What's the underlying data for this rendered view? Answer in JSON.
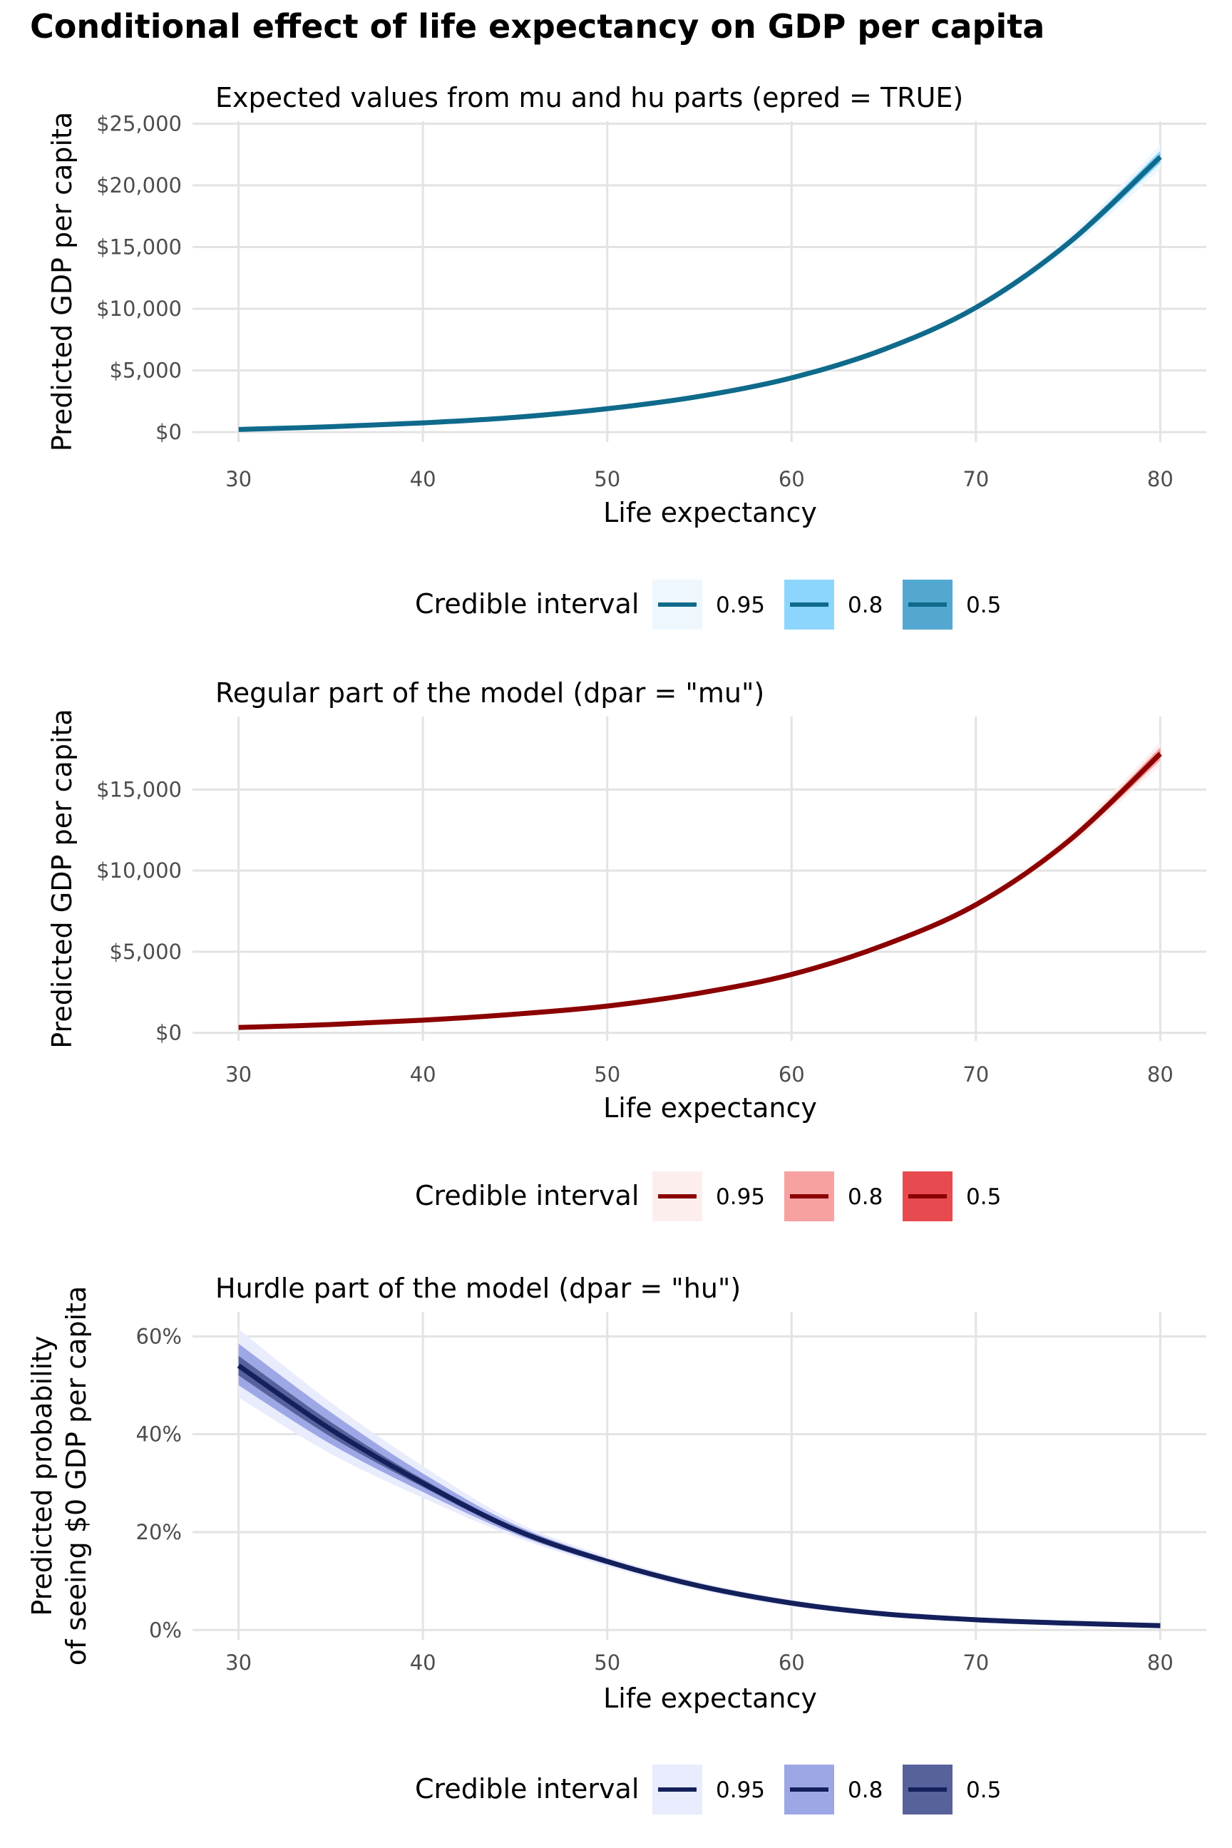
{
  "title": "Conditional effect of life expectancy on GDP per capita",
  "chart_data": [
    {
      "type": "line",
      "subtitle": "Expected values from mu and hu parts (epred = TRUE)",
      "xlabel": "Life expectancy",
      "ylabel": [
        "Predicted GDP per capita"
      ],
      "xlim": [
        27.5,
        82.5
      ],
      "ylim": [
        -800,
        25200
      ],
      "x_ticks": [
        30,
        40,
        50,
        60,
        70,
        80
      ],
      "x_tick_labels": [
        "30",
        "40",
        "50",
        "60",
        "70",
        "80"
      ],
      "y_ticks": [
        0,
        5000,
        10000,
        15000,
        20000,
        25000
      ],
      "y_tick_labels": [
        "$0",
        "$5,000",
        "$10,000",
        "$15,000",
        "$20,000",
        "$25,000"
      ],
      "line_color": "#0F6A8B",
      "band_colors": [
        "#EFF7FE",
        "#8CD6FE",
        "#52A8D0"
      ],
      "x": [
        30,
        35,
        40,
        45,
        50,
        55,
        60,
        65,
        70,
        75,
        80
      ],
      "y": [
        220,
        440,
        750,
        1200,
        1900,
        2900,
        4400,
        6700,
        10100,
        15300,
        22300
      ],
      "intervals": {
        "0.95": {
          "lower": [
            200,
            410,
            710,
            1140,
            1830,
            2810,
            4280,
            6520,
            9850,
            14750,
            21300
          ],
          "upper": [
            240,
            470,
            790,
            1260,
            1970,
            2990,
            4520,
            6880,
            10350,
            15850,
            23300
          ]
        },
        "0.8": {
          "lower": [
            210,
            425,
            730,
            1170,
            1865,
            2855,
            4340,
            6610,
            9975,
            15025,
            21800
          ],
          "upper": [
            230,
            455,
            770,
            1230,
            1935,
            2945,
            4460,
            6790,
            10225,
            15575,
            22800
          ]
        },
        "0.5": {
          "lower": [
            215,
            432,
            740,
            1185,
            1882,
            2877,
            4370,
            6655,
            10035,
            15160,
            22050
          ],
          "upper": [
            225,
            448,
            760,
            1215,
            1918,
            2923,
            4430,
            6745,
            10165,
            15440,
            22550
          ]
        }
      },
      "legend": {
        "title": "Credible interval",
        "entries": [
          "0.95",
          "0.8",
          "0.5"
        ]
      }
    },
    {
      "type": "line",
      "subtitle": "Regular part of the model (dpar = \"mu\")",
      "xlabel": "Life expectancy",
      "ylabel": [
        "Predicted GDP per capita"
      ],
      "xlim": [
        27.5,
        82.5
      ],
      "ylim": [
        -500,
        19500
      ],
      "x_ticks": [
        30,
        40,
        50,
        60,
        70,
        80
      ],
      "x_tick_labels": [
        "30",
        "40",
        "50",
        "60",
        "70",
        "80"
      ],
      "y_ticks": [
        0,
        5000,
        10000,
        15000
      ],
      "y_tick_labels": [
        "$0",
        "$5,000",
        "$10,000",
        "$15,000"
      ],
      "line_color": "#8B0000",
      "band_colors": [
        "#FDEEEE",
        "#F7A1A1",
        "#E84A4F"
      ],
      "x": [
        30,
        35,
        40,
        45,
        50,
        55,
        60,
        65,
        70,
        75,
        80
      ],
      "y": [
        330,
        510,
        780,
        1150,
        1650,
        2450,
        3600,
        5400,
        7900,
        11800,
        17200
      ],
      "intervals": {
        "0.95": {
          "lower": [
            300,
            480,
            745,
            1105,
            1590,
            2370,
            3490,
            5240,
            7680,
            11450,
            16500
          ],
          "upper": [
            360,
            540,
            815,
            1195,
            1710,
            2530,
            3710,
            5560,
            8120,
            12150,
            17900
          ]
        },
        "0.8": {
          "lower": [
            310,
            490,
            760,
            1125,
            1615,
            2405,
            3540,
            5310,
            7780,
            11610,
            16800
          ],
          "upper": [
            350,
            530,
            800,
            1175,
            1685,
            2495,
            3660,
            5490,
            8020,
            11990,
            17600
          ]
        },
        "0.5": {
          "lower": [
            318,
            498,
            768,
            1135,
            1630,
            2425,
            3570,
            5355,
            7840,
            11700,
            17000
          ],
          "upper": [
            342,
            522,
            792,
            1165,
            1670,
            2475,
            3630,
            5445,
            7960,
            11900,
            17400
          ]
        }
      },
      "legend": {
        "title": "Credible interval",
        "entries": [
          "0.95",
          "0.8",
          "0.5"
        ]
      }
    },
    {
      "type": "line",
      "subtitle": "Hurdle part of the model (dpar = \"hu\")",
      "xlabel": "Life expectancy",
      "ylabel": [
        "Predicted probability",
        "of seeing $0 GDP per capita"
      ],
      "xlim": [
        27.5,
        82.5
      ],
      "ylim": [
        -0.02,
        0.65
      ],
      "x_ticks": [
        30,
        40,
        50,
        60,
        70,
        80
      ],
      "x_tick_labels": [
        "30",
        "40",
        "50",
        "60",
        "70",
        "80"
      ],
      "y_ticks": [
        0,
        0.2,
        0.4,
        0.6
      ],
      "y_tick_labels": [
        "0%",
        "20%",
        "40%",
        "60%"
      ],
      "line_color": "#13205B",
      "band_colors": [
        "#E9ECFC",
        "#9EA7E6",
        "#57619A"
      ],
      "x": [
        30,
        35,
        40,
        45,
        50,
        55,
        60,
        65,
        70,
        75,
        80
      ],
      "y": [
        0.54,
        0.41,
        0.3,
        0.205,
        0.14,
        0.09,
        0.055,
        0.033,
        0.021,
        0.014,
        0.009
      ],
      "intervals": {
        "0.95": {
          "lower": [
            0.475,
            0.36,
            0.27,
            0.19,
            0.13,
            0.082,
            0.048,
            0.028,
            0.017,
            0.011,
            0.007
          ],
          "upper": [
            0.615,
            0.465,
            0.335,
            0.222,
            0.15,
            0.098,
            0.062,
            0.038,
            0.025,
            0.017,
            0.011
          ]
        },
        "0.8": {
          "lower": [
            0.5,
            0.38,
            0.282,
            0.196,
            0.134,
            0.085,
            0.051,
            0.03,
            0.019,
            0.012,
            0.008
          ],
          "upper": [
            0.585,
            0.445,
            0.32,
            0.215,
            0.146,
            0.095,
            0.059,
            0.036,
            0.023,
            0.016,
            0.01
          ]
        },
        "0.5": {
          "lower": [
            0.52,
            0.395,
            0.292,
            0.2,
            0.137,
            0.088,
            0.053,
            0.032,
            0.02,
            0.013,
            0.0085
          ],
          "upper": [
            0.56,
            0.425,
            0.308,
            0.21,
            0.143,
            0.092,
            0.057,
            0.034,
            0.022,
            0.015,
            0.0095
          ]
        }
      },
      "legend": {
        "title": "Credible interval",
        "entries": [
          "0.95",
          "0.8",
          "0.5"
        ]
      }
    }
  ]
}
